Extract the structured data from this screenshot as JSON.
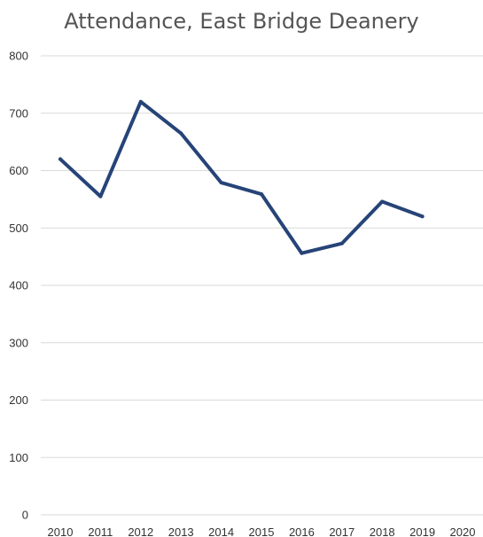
{
  "chart_data": {
    "type": "line",
    "title": "Attendance, East Bridge Deanery",
    "xlabel": "",
    "ylabel": "",
    "categories": [
      "2010",
      "2011",
      "2012",
      "2013",
      "2014",
      "2015",
      "2016",
      "2017",
      "2018",
      "2019",
      "2020"
    ],
    "series": [
      {
        "values": [
          620,
          555,
          720,
          665,
          579,
          559,
          456,
          473,
          546,
          520,
          null
        ],
        "color": "#264478"
      }
    ],
    "ylim": [
      0,
      800
    ],
    "yticks": [
      0,
      100,
      200,
      300,
      400,
      500,
      600,
      700,
      800
    ],
    "grid": true,
    "gridColor": "#d9d9d9",
    "legend": "none"
  }
}
